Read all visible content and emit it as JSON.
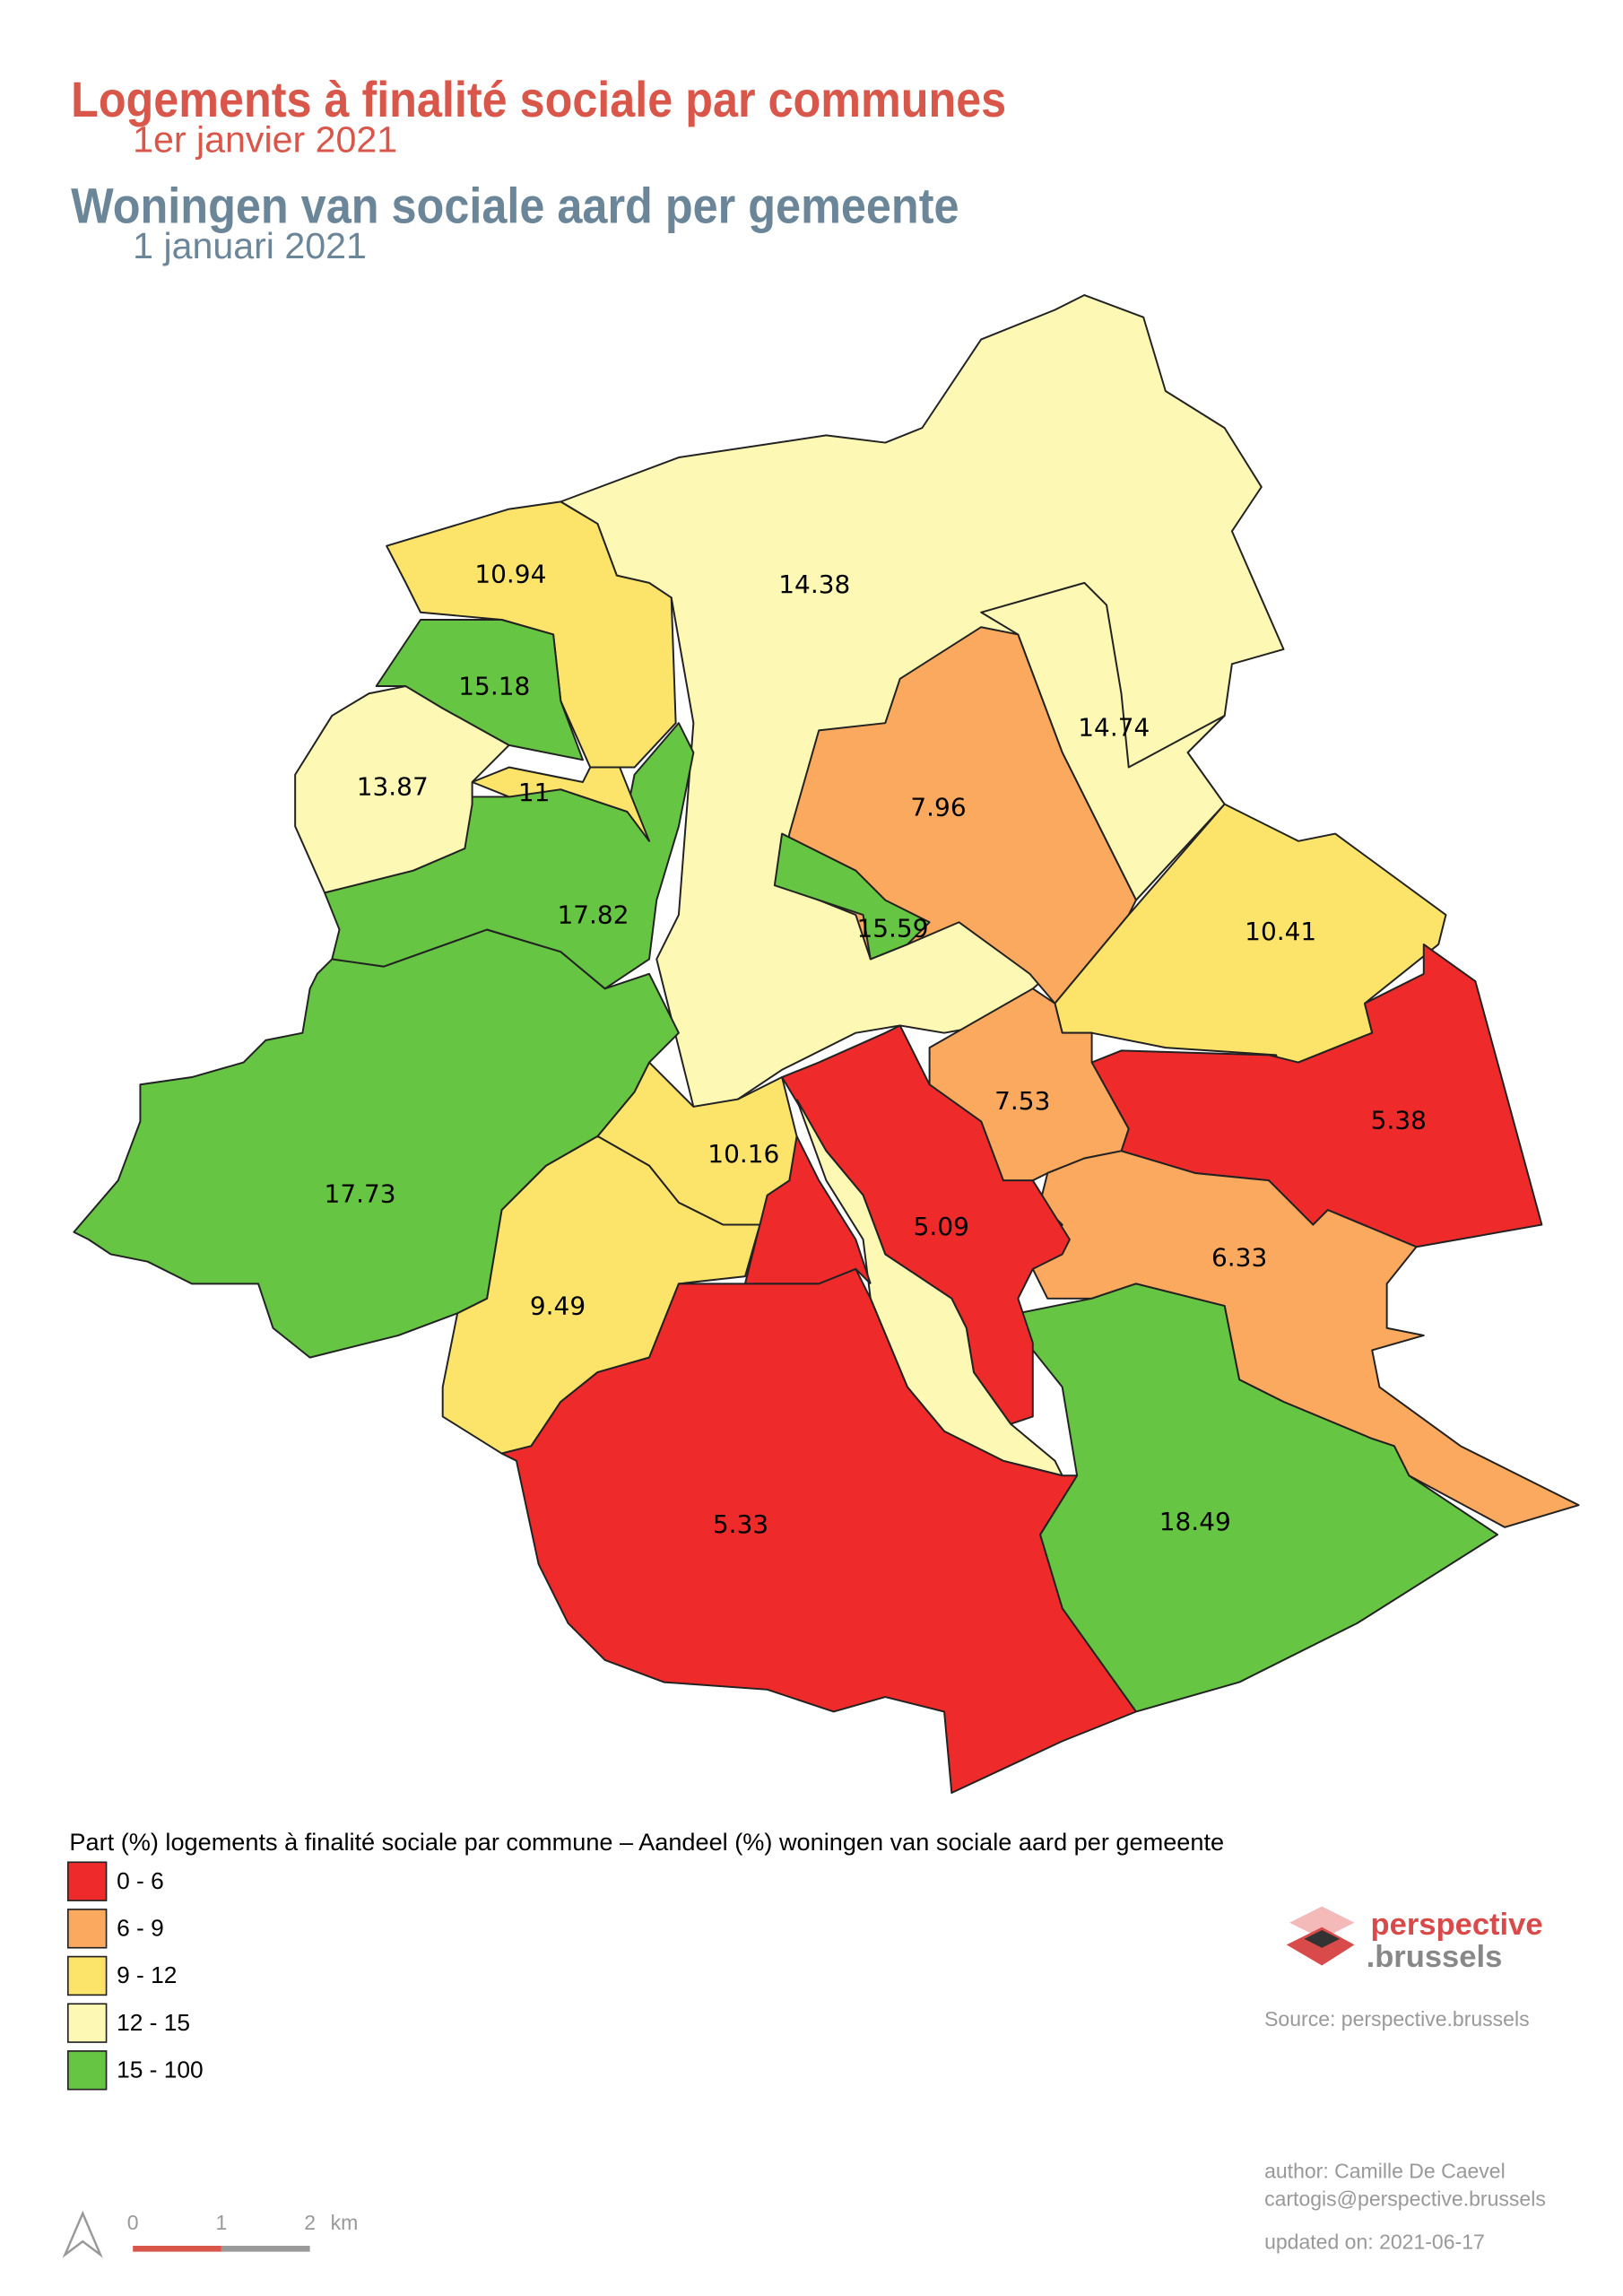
{
  "title_fr": "Logements à finalité sociale par communes",
  "subtitle_fr": "1er janvier 2021",
  "title_nl": "Woningen van sociale aard per gemeente",
  "subtitle_nl": "1 januari 2021",
  "regions": [
    {
      "value": 14.38
    },
    {
      "value": 14.74
    },
    {
      "value": 7.96
    },
    {
      "value": 15.59
    },
    {
      "value": 10.41
    },
    {
      "value": 5.38
    },
    {
      "value": 7.53
    },
    {
      "value": 6.33
    },
    {
      "value": 18.49
    },
    {
      "value": 5.09
    },
    {
      "value": 10.16
    },
    {
      "value": 9.49
    },
    {
      "value": 5.33
    },
    {
      "value": 17.73
    },
    {
      "value": 17.82
    },
    {
      "value": 10.94
    },
    {
      "value": 11
    },
    {
      "value": 13.87
    },
    {
      "value": 15.18
    }
  ],
  "legend": {
    "title": "Part (%) logements à finalité sociale par commune – Aandeel (%) woningen van sociale aard per gemeente",
    "classes": [
      {
        "label": "0 - 6",
        "min": 0,
        "max": 6,
        "color": "#ee2a2a"
      },
      {
        "label": "6 - 9",
        "min": 6,
        "max": 9,
        "color": "#fba95e"
      },
      {
        "label": "9 - 12",
        "min": 9,
        "max": 12,
        "color": "#fce46a"
      },
      {
        "label": "12 - 15",
        "min": 12,
        "max": 15,
        "color": "#fdf8b4"
      },
      {
        "label": "15 - 100",
        "min": 15,
        "max": 100,
        "color": "#66c543"
      }
    ]
  },
  "logo": {
    "line1": "perspective",
    "line2": ".brussels"
  },
  "source": "Source: perspective.brussels",
  "author": "author: Camille De Caevel",
  "email": "cartogis@perspective.brussels",
  "updated": "updated on: 2021-06-17",
  "scale_bar": {
    "ticks": [
      0,
      1,
      2
    ],
    "unit": "km"
  }
}
